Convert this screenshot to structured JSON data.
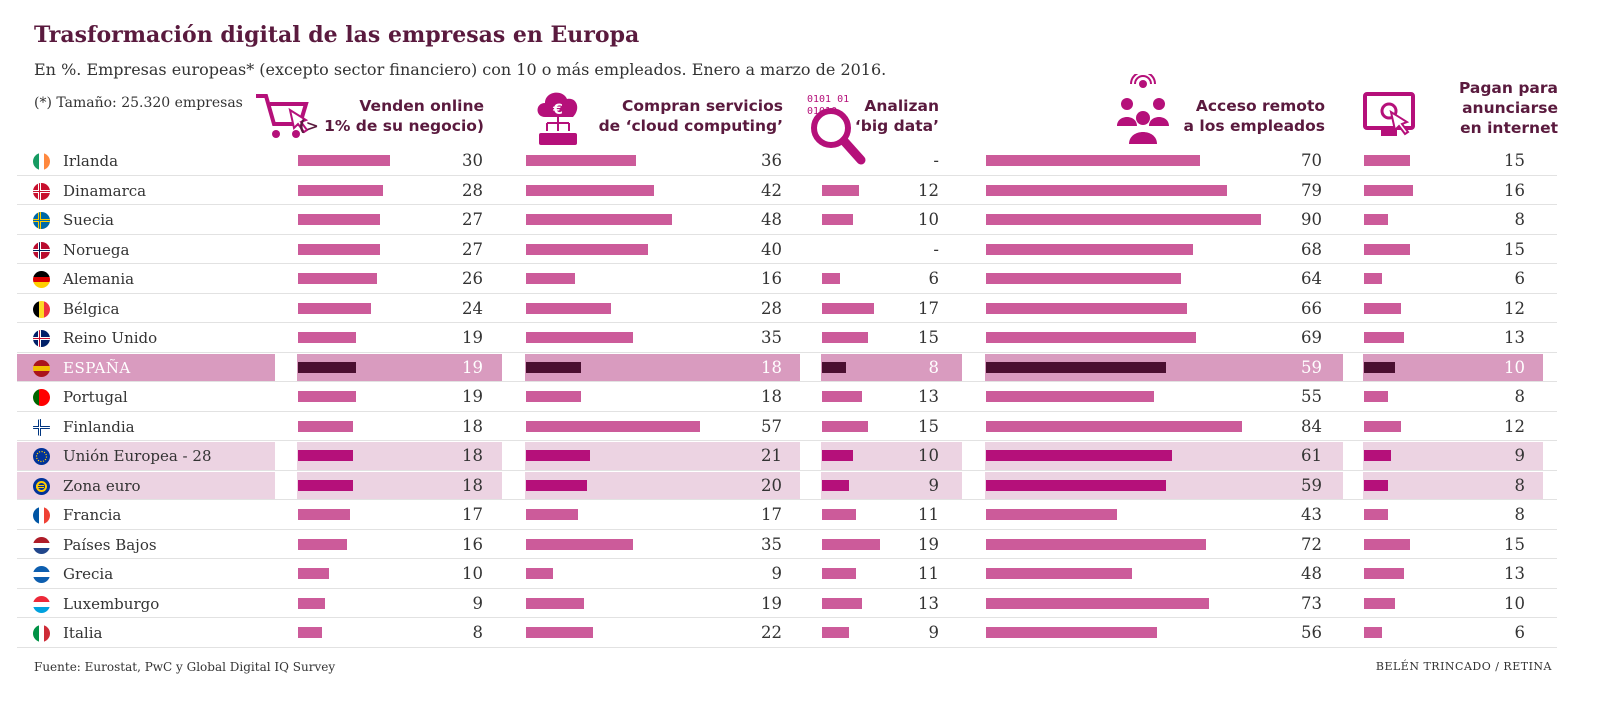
{
  "title": "Trasformación digital de las empresas en Europa",
  "subtitle": "En %. Empresas europeas* (excepto sector financiero) con 10 o más empleados. Enero a marzo de 2016.",
  "footnote": "(*) Tamaño: 25.320 empresas",
  "source": "Fuente:  Eurostat, PwC y Global Digital IQ Survey",
  "credit": "BELÉN TRINCADO / RETINA",
  "icons": [
    "shopping-cart-icon",
    "cloud-euro-icon",
    "big-data-magnifier-icon",
    "remote-employees-icon",
    "online-ad-screen-icon"
  ],
  "colors": {
    "bar": "#cc5b9a",
    "bar_spain": "#4a0f30",
    "bar_eu": "#b5107a",
    "highlight_spain": "#d99bbf",
    "highlight_eu": "#ecd3e2",
    "icon": "#b5107a",
    "title": "#5a1a3e"
  },
  "headers": [
    [
      "Venden online",
      "(> 1% de su negocio)"
    ],
    [
      "Compran servicios",
      "de ‘cloud computing’"
    ],
    [
      "Analizan",
      "‘big data’"
    ],
    [
      "Acceso remoto",
      "a los empleados"
    ],
    [
      "Pagan para",
      "anunciarse",
      "en internet"
    ]
  ],
  "chart_data": {
    "type": "bar",
    "title": "Trasformación digital de las empresas en Europa",
    "categories": [
      "Irlanda",
      "Dinamarca",
      "Suecia",
      "Noruega",
      "Alemania",
      "Bélgica",
      "Reino Unido",
      "ESPAÑA",
      "Portugal",
      "Finlandia",
      "Unión Europea - 28",
      "Zona euro",
      "Francia",
      "Países Bajos",
      "Grecia",
      "Luxemburgo",
      "Italia"
    ],
    "highlight": {
      "spain": [
        "ESPAÑA"
      ],
      "aggregate": [
        "Unión Europea - 28",
        "Zona euro"
      ]
    },
    "series": [
      {
        "name": "Venden online (> 1% de su negocio)",
        "values": [
          30,
          28,
          27,
          27,
          26,
          24,
          19,
          19,
          19,
          18,
          18,
          18,
          17,
          16,
          10,
          9,
          8
        ]
      },
      {
        "name": "Compran servicios de ‘cloud computing’",
        "values": [
          36,
          42,
          48,
          40,
          16,
          28,
          35,
          18,
          18,
          57,
          21,
          20,
          17,
          35,
          9,
          19,
          22
        ]
      },
      {
        "name": "Analizan ‘big data’",
        "values": [
          null,
          12,
          10,
          null,
          6,
          17,
          15,
          8,
          13,
          15,
          10,
          9,
          11,
          19,
          11,
          13,
          9
        ]
      },
      {
        "name": "Acceso remoto a los empleados",
        "values": [
          70,
          79,
          90,
          68,
          64,
          66,
          69,
          59,
          55,
          84,
          61,
          59,
          43,
          72,
          48,
          73,
          56
        ]
      },
      {
        "name": "Pagan para anunciarse en internet",
        "values": [
          15,
          16,
          8,
          15,
          6,
          12,
          13,
          10,
          8,
          12,
          9,
          8,
          8,
          15,
          13,
          10,
          6
        ]
      }
    ],
    "missing_label": "-"
  }
}
